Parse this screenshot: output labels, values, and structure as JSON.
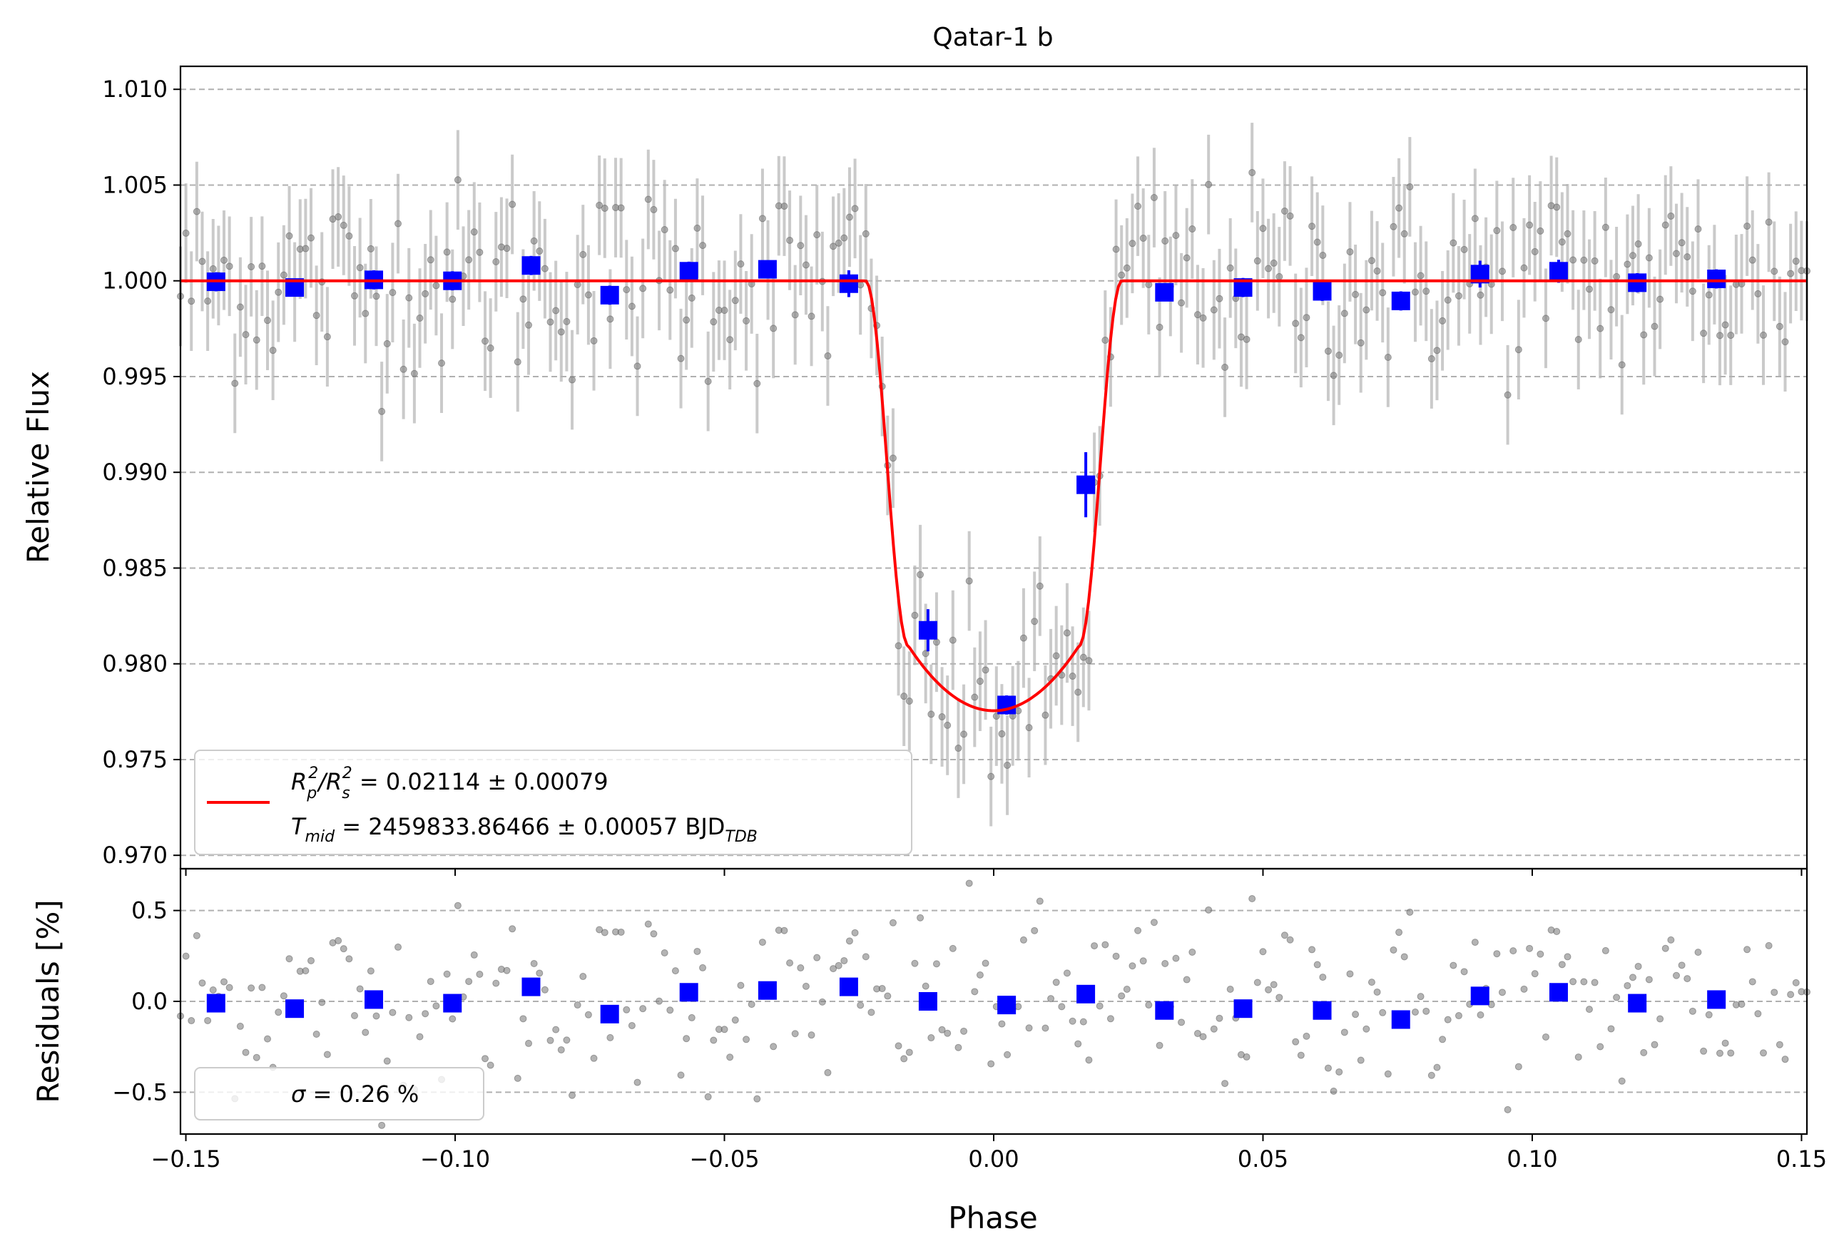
{
  "chart_data": [
    {
      "type": "scatter",
      "panel": "top",
      "title": "Qatar-1 b",
      "ylabel": "Relative Flux",
      "xlabel": "",
      "xlim": [
        -0.151,
        0.151
      ],
      "ylim": [
        0.9693,
        1.0112
      ],
      "x_ticks": [
        -0.15,
        -0.1,
        -0.05,
        0.0,
        0.05,
        0.1,
        0.15
      ],
      "x_tick_labels": [
        "",
        "",
        "",
        "",
        "",
        "",
        ""
      ],
      "y_ticks": [
        0.97,
        0.975,
        0.98,
        0.985,
        0.99,
        0.995,
        1.0,
        1.005,
        1.01
      ],
      "y_tick_labels": [
        "0.970",
        "0.975",
        "0.980",
        "0.985",
        "0.990",
        "0.995",
        "1.000",
        "1.005",
        "1.010"
      ],
      "grid": "horizontal dashed",
      "model": {
        "depth": 0.02245,
        "t14_half": 0.0238,
        "t23_half": 0.0158,
        "color": "#ff0000"
      },
      "binned": {
        "x": [
          -0.1444,
          -0.1298,
          -0.1151,
          -0.1005,
          -0.0859,
          -0.0713,
          -0.0566,
          -0.042,
          -0.0269,
          -0.0122,
          0.0024,
          0.0171,
          0.0317,
          0.0463,
          0.061,
          0.0756,
          0.0903,
          0.1049,
          0.1195,
          0.1342
        ],
        "y": [
          0.99995,
          0.99965,
          1.00005,
          1.0,
          1.0008,
          0.99925,
          1.0005,
          1.0006,
          0.99985,
          0.98175,
          0.97785,
          0.98935,
          0.9994,
          0.99965,
          0.99945,
          0.99895,
          1.00035,
          1.0005,
          0.9999,
          1.0001
        ],
        "err": [
          0.0005,
          0.0004,
          0.0005,
          0.0005,
          0.0005,
          0.0005,
          0.0005,
          0.0004,
          0.0007,
          0.0011,
          0.0005,
          0.0017,
          0.0004,
          0.0005,
          0.0005,
          0.0005,
          0.0007,
          0.0006,
          0.0005,
          0.0005
        ],
        "color": "#0000ff"
      },
      "raw": {
        "n": 300,
        "x_range": [
          -0.151,
          0.151
        ],
        "noise_sigma": 0.0026,
        "error_bar": 0.0026,
        "color": "#808080"
      },
      "legend": {
        "placement": "lower-left",
        "line1_main": "R",
        "line1_sub1": "p",
        "line1_sup1": "2",
        "line1_sep": "/R",
        "line1_sub2": "s",
        "line1_sup2": "2",
        "line1_value": " = 0.02114 ± 0.00079",
        "line2_main": "T",
        "line2_sub": "mid",
        "line2_value": " = 2459833.86466 ± 0.00057 BJD",
        "line2_unit_sub": "TDB"
      }
    },
    {
      "type": "scatter",
      "panel": "bottom",
      "title": "",
      "ylabel": "Residuals [%]",
      "xlabel": "Phase",
      "xlim": [
        -0.151,
        0.151
      ],
      "ylim": [
        -0.73,
        0.73
      ],
      "x_ticks": [
        -0.15,
        -0.1,
        -0.05,
        0.0,
        0.05,
        0.1,
        0.15
      ],
      "x_tick_labels": [
        "−0.15",
        "−0.10",
        "−0.05",
        "0.00",
        "0.05",
        "0.10",
        "0.15"
      ],
      "y_ticks": [
        -0.5,
        0.0,
        0.5
      ],
      "y_tick_labels": [
        "−0.5",
        "0.0",
        "0.5"
      ],
      "grid": "horizontal dashed",
      "binned": {
        "x": [
          -0.1444,
          -0.1298,
          -0.1151,
          -0.1005,
          -0.0859,
          -0.0713,
          -0.0566,
          -0.042,
          -0.0269,
          -0.0122,
          0.0024,
          0.0171,
          0.0317,
          0.0463,
          0.061,
          0.0756,
          0.0903,
          0.1049,
          0.1195,
          0.1342
        ],
        "y": [
          -0.01,
          -0.04,
          0.01,
          -0.01,
          0.08,
          -0.07,
          0.05,
          0.06,
          0.08,
          0.0,
          -0.02,
          0.04,
          -0.05,
          -0.04,
          -0.05,
          -0.1,
          0.03,
          0.05,
          -0.01,
          0.01
        ],
        "color": "#0000ff"
      },
      "raw": {
        "n": 300,
        "noise_sigma": 0.26,
        "color": "#808080"
      },
      "legend": {
        "placement": "lower-left",
        "sigma_symbol": "σ",
        "text": " = 0.26 %"
      }
    }
  ]
}
